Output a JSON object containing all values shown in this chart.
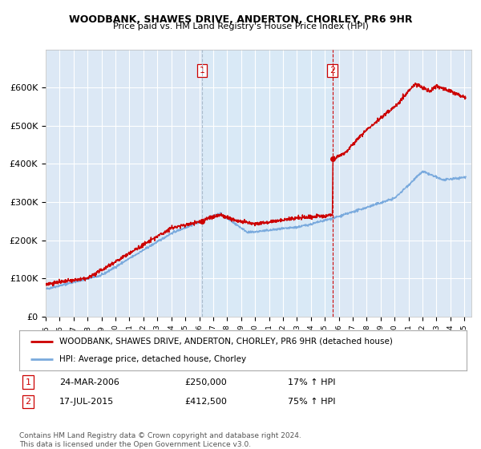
{
  "title": "WOODBANK, SHAWES DRIVE, ANDERTON, CHORLEY, PR6 9HR",
  "subtitle": "Price paid vs. HM Land Registry's House Price Index (HPI)",
  "ylim": [
    0,
    700000
  ],
  "yticks": [
    0,
    100000,
    200000,
    300000,
    400000,
    500000,
    600000
  ],
  "ytick_labels": [
    "£0",
    "£100K",
    "£200K",
    "£300K",
    "£400K",
    "£500K",
    "£600K"
  ],
  "background_color": "#ffffff",
  "plot_bg_color": "#dce8f5",
  "shade_color": "#c8dcf0",
  "grid_color": "#ffffff",
  "hpi_color": "#7aaadd",
  "price_color": "#cc0000",
  "sale1_date": 2006.21,
  "sale1_price": 250000,
  "sale1_label": "1",
  "sale2_date": 2015.54,
  "sale2_price": 412500,
  "sale2_label": "2",
  "sale1_vline_color": "#aabbcc",
  "sale2_vline_color": "#cc0000",
  "legend_line1": "WOODBANK, SHAWES DRIVE, ANDERTON, CHORLEY, PR6 9HR (detached house)",
  "legend_line2": "HPI: Average price, detached house, Chorley",
  "note1_num": "1",
  "note1_date": "24-MAR-2006",
  "note1_price": "£250,000",
  "note1_hpi": "17% ↑ HPI",
  "note2_num": "2",
  "note2_date": "17-JUL-2015",
  "note2_price": "£412,500",
  "note2_hpi": "75% ↑ HPI",
  "footnote": "Contains HM Land Registry data © Crown copyright and database right 2024.\nThis data is licensed under the Open Government Licence v3.0."
}
